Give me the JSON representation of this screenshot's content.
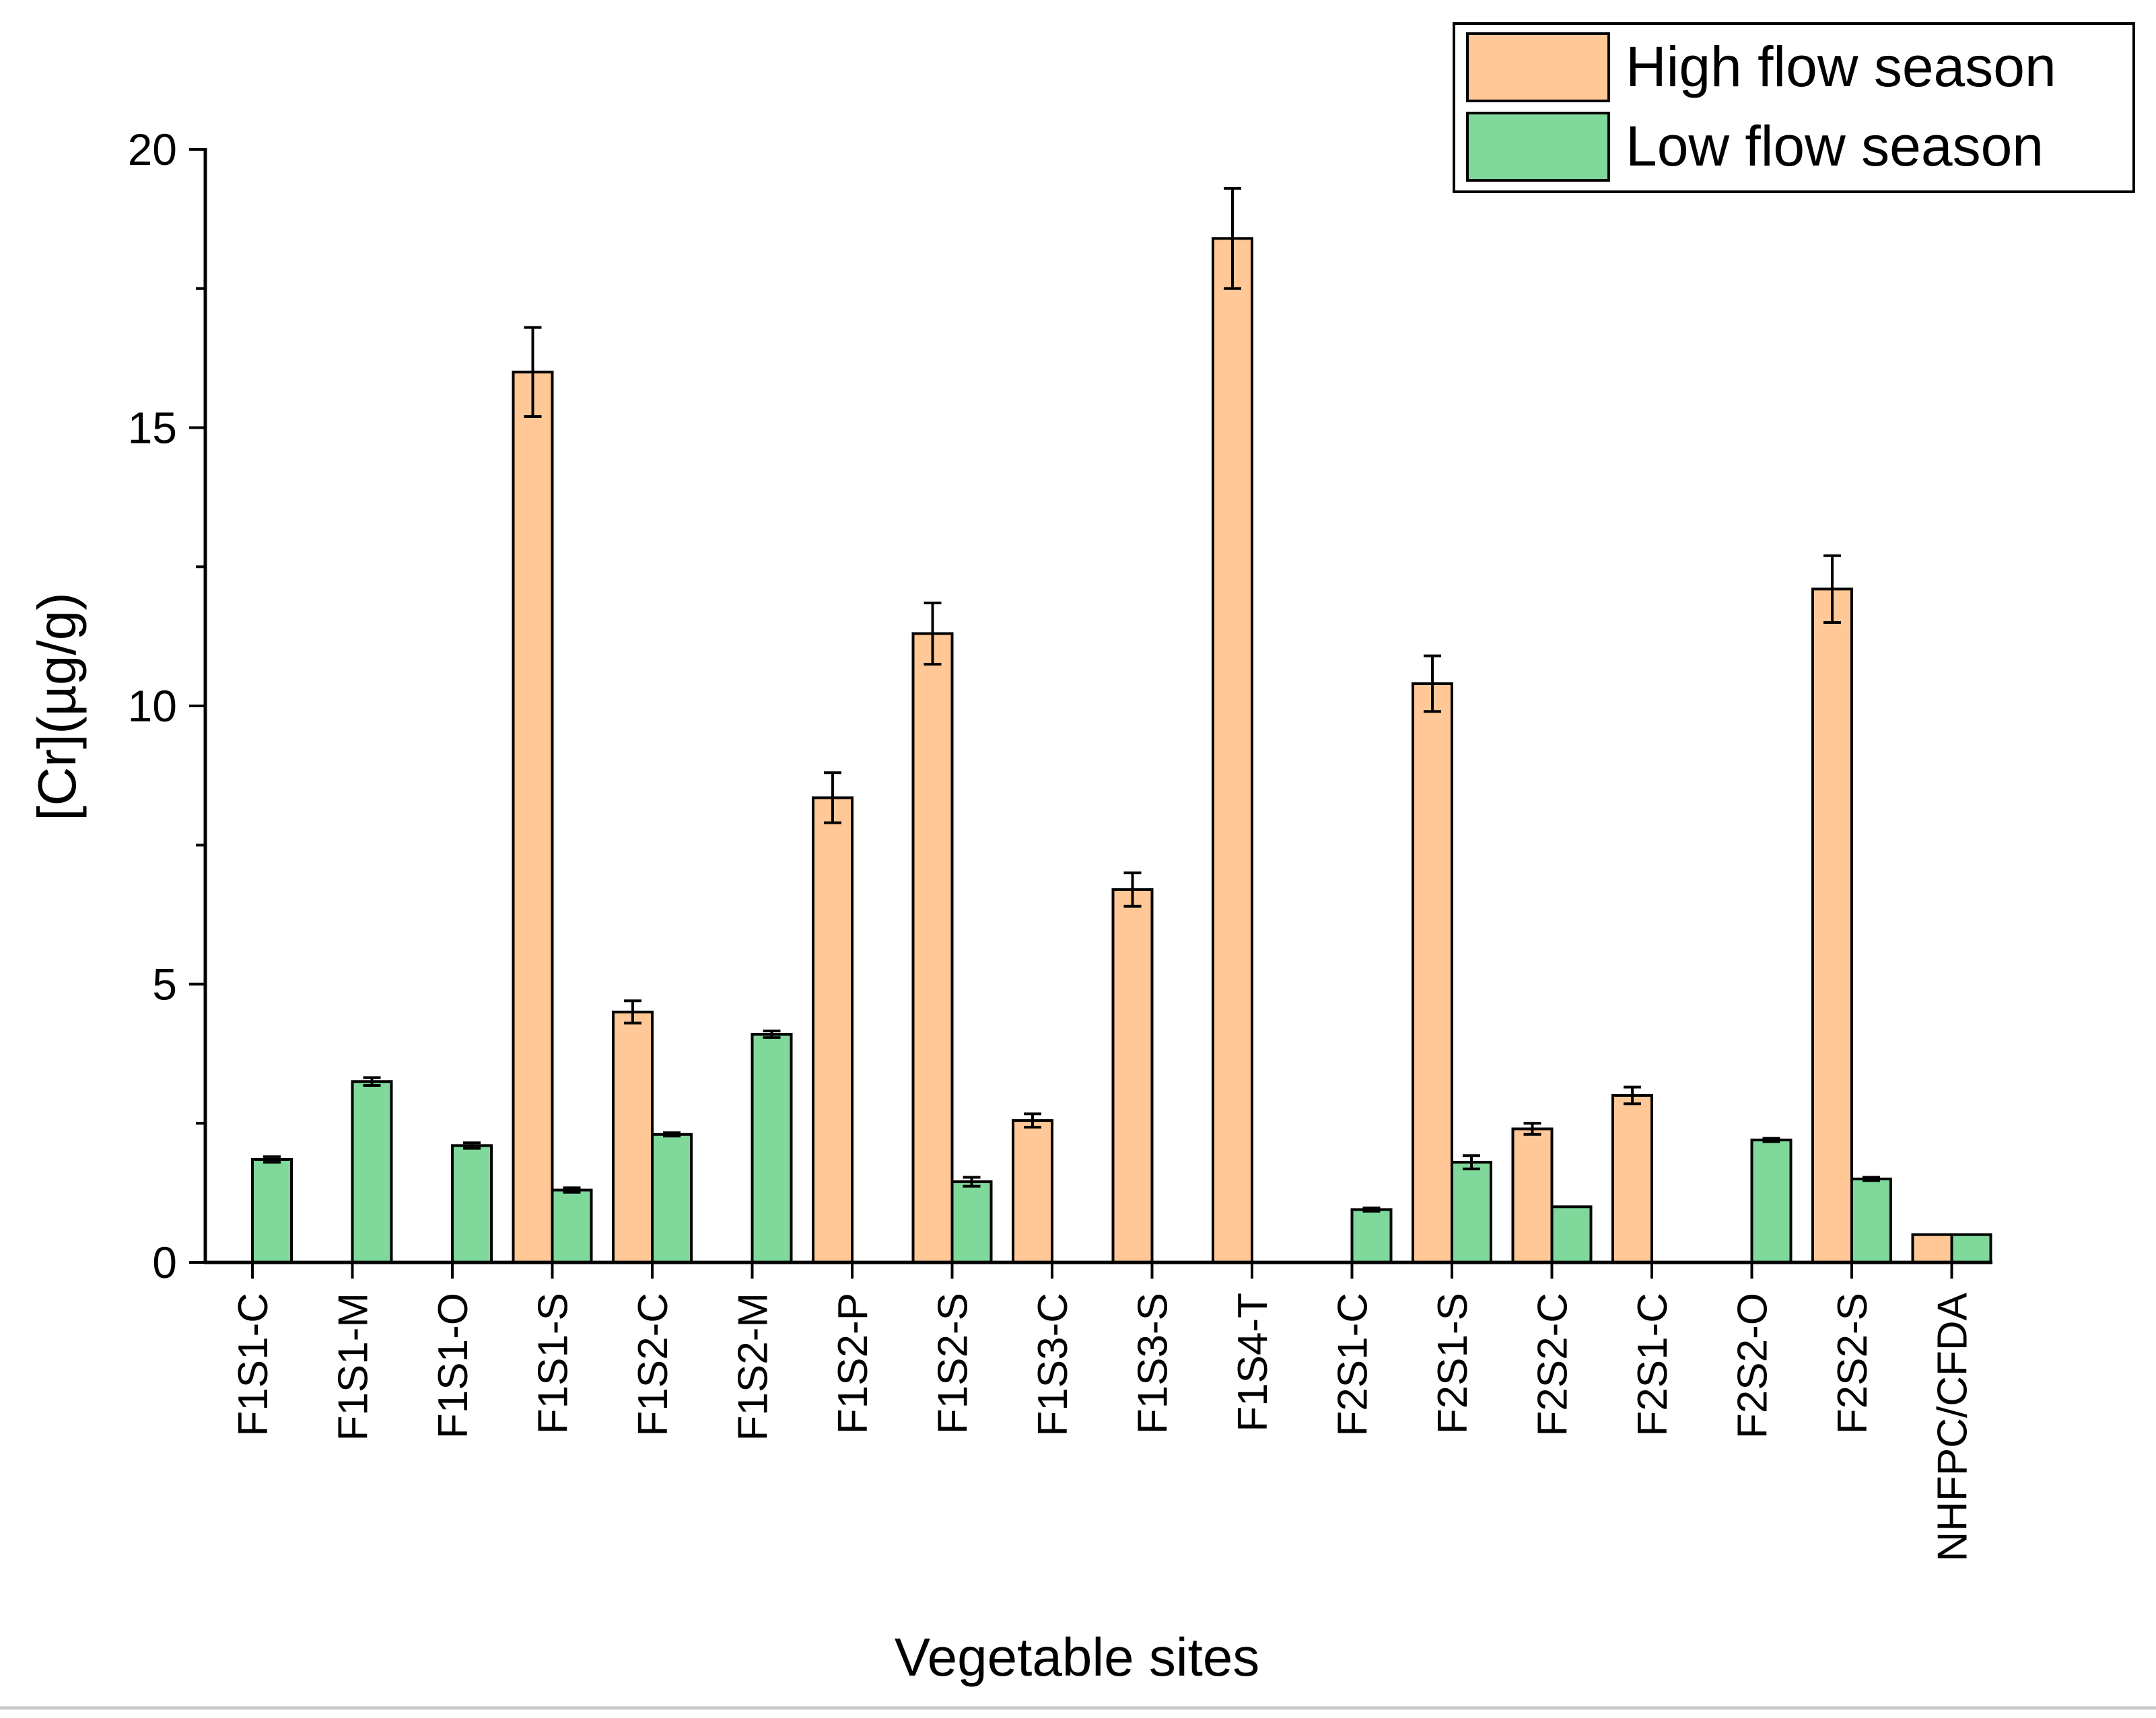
{
  "chart_data": {
    "type": "bar",
    "title": "",
    "xlabel": "Vegetable sites",
    "ylabel": "[Cr](µg/g)",
    "ylim": [
      0,
      20
    ],
    "yticks": [
      0,
      5,
      10,
      15,
      20
    ],
    "yticks_labels": [
      "0",
      "5",
      "10",
      "15",
      "20"
    ],
    "grid": false,
    "legend_position": "top-right",
    "categories": [
      "F1S1-C",
      "F1S1-M",
      "F1S1-O",
      "F1S1-S",
      "F1S2-C",
      "F1S2-M",
      "F1S2-P",
      "F1S2-S",
      "F1S3-C",
      "F1S3-S",
      "F1S4-T",
      "F2S1-C",
      "F2S1-S",
      "F2S2-C",
      "F2S1-C",
      "F2S2-O",
      "F2S2-S",
      "NHFPC/CFDA"
    ],
    "series": [
      {
        "name": "High flow season",
        "color": "#FFC896",
        "values": [
          null,
          null,
          null,
          16.0,
          4.5,
          null,
          8.35,
          11.3,
          2.55,
          6.7,
          18.4,
          null,
          10.4,
          2.4,
          3.0,
          null,
          12.1,
          0.5
        ],
        "errors": [
          null,
          null,
          null,
          0.8,
          0.2,
          null,
          0.45,
          0.55,
          0.12,
          0.3,
          0.9,
          null,
          0.5,
          0.1,
          0.15,
          null,
          0.6,
          null
        ]
      },
      {
        "name": "Low flow season",
        "color": "#7ED99A",
        "values": [
          1.85,
          3.25,
          2.1,
          1.3,
          2.3,
          4.1,
          null,
          1.45,
          null,
          null,
          null,
          0.95,
          1.8,
          1.0,
          null,
          2.2,
          1.5,
          0.5
        ],
        "errors": [
          0.05,
          0.07,
          0.05,
          0.04,
          0.03,
          0.06,
          null,
          0.08,
          null,
          null,
          null,
          0.03,
          0.12,
          null,
          null,
          0.03,
          0.03,
          null
        ]
      }
    ]
  }
}
